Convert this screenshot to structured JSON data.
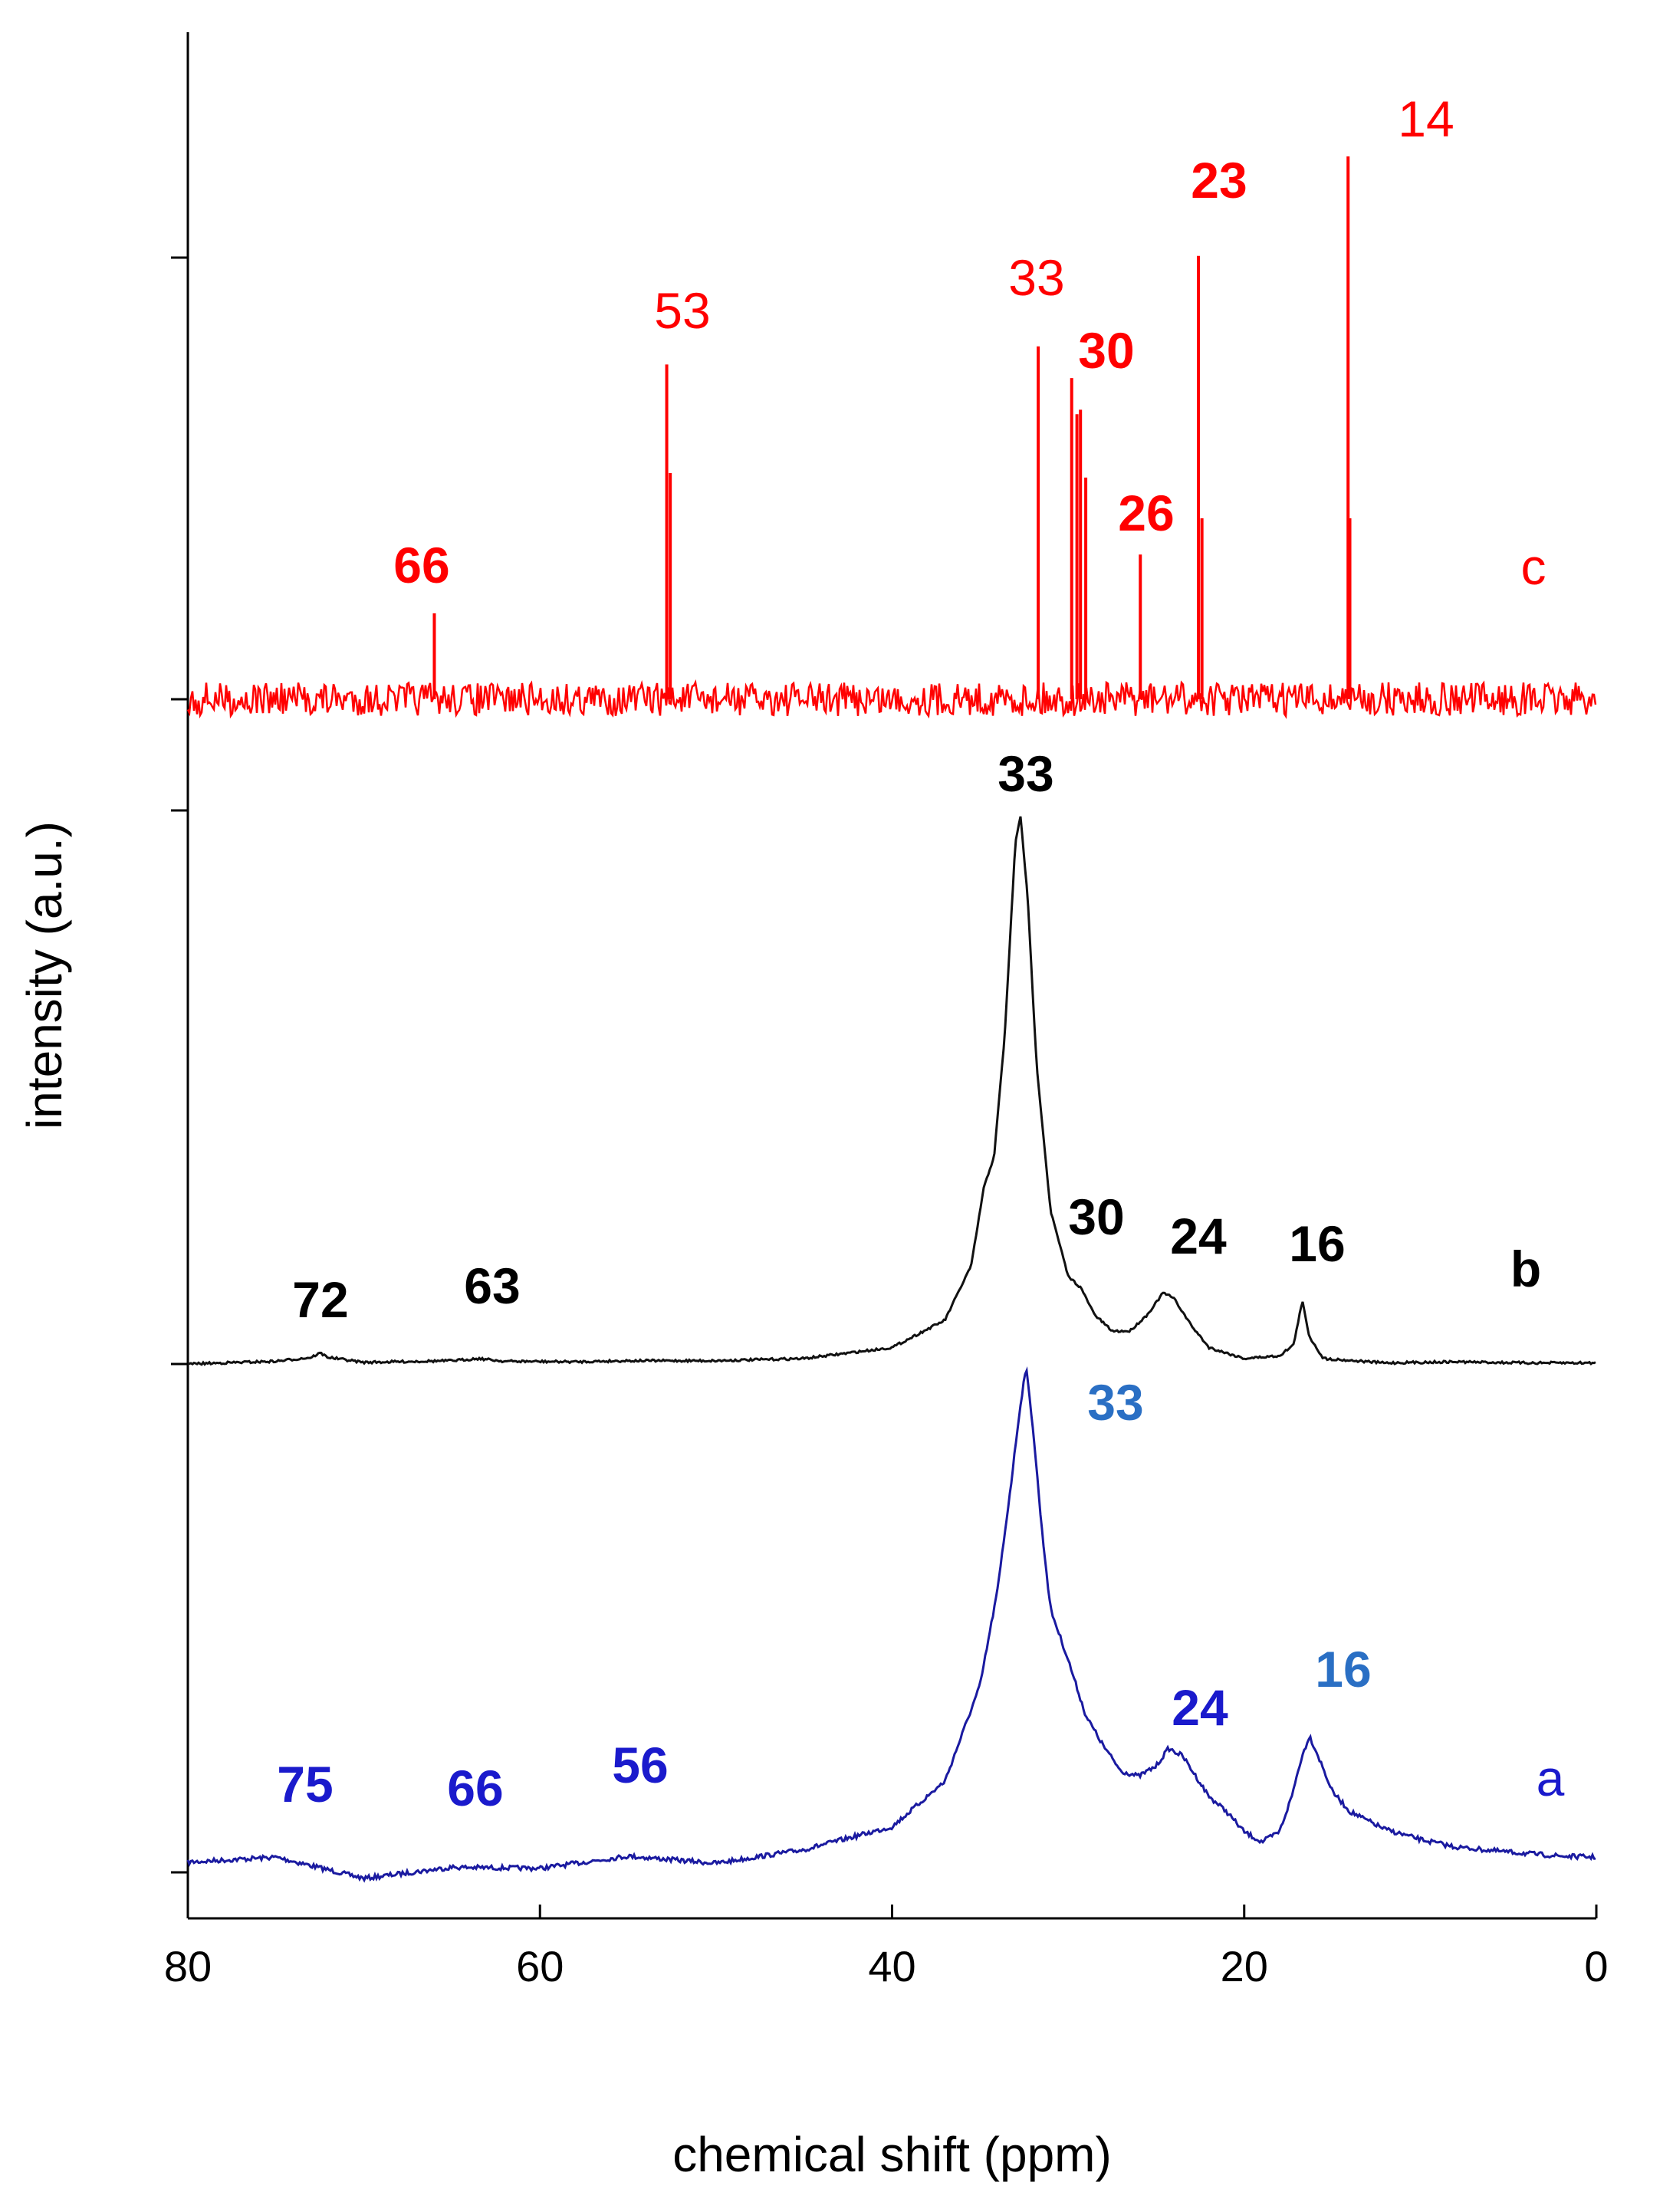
{
  "chart_data": {
    "type": "line",
    "title": "",
    "xlabel": "chemical shift (ppm)",
    "ylabel": "intensity (a.u.)",
    "xlim": [
      80,
      0
    ],
    "x_reversed": true,
    "xticks": [
      "80",
      "60",
      "40",
      "20",
      "0"
    ],
    "grid": false,
    "series": [
      {
        "name": "a",
        "color": "#1a1aa0",
        "label_color": "#1a1acc",
        "style": "broad",
        "baseline": [
          [
            80,
            0.02
          ],
          [
            75,
            0.03
          ],
          [
            70,
            -0.012
          ],
          [
            65,
            0.01
          ],
          [
            60,
            0.008
          ],
          [
            55,
            0.032
          ],
          [
            50,
            0.018
          ],
          [
            45,
            0.045
          ],
          [
            40,
            0.09
          ],
          [
            37,
            0.18
          ],
          [
            35,
            0.37
          ],
          [
            34,
            0.56
          ],
          [
            33.2,
            0.78
          ],
          [
            32.8,
            0.9
          ],
          [
            32.4,
            1.0
          ],
          [
            32.0,
            0.88
          ],
          [
            31.5,
            0.68
          ],
          [
            31,
            0.52
          ],
          [
            30,
            0.42
          ],
          [
            29,
            0.31
          ],
          [
            28,
            0.25
          ],
          [
            27,
            0.2
          ],
          [
            26,
            0.19
          ],
          [
            25,
            0.21
          ],
          [
            24.3,
            0.245
          ],
          [
            23.5,
            0.23
          ],
          [
            22,
            0.15
          ],
          [
            21,
            0.12
          ],
          [
            20,
            0.08
          ],
          [
            19,
            0.06
          ],
          [
            18,
            0.08
          ],
          [
            17.3,
            0.15
          ],
          [
            16.8,
            0.22
          ],
          [
            16.3,
            0.27
          ],
          [
            15.8,
            0.23
          ],
          [
            15,
            0.16
          ],
          [
            14,
            0.12
          ],
          [
            12,
            0.085
          ],
          [
            10,
            0.065
          ],
          [
            8,
            0.05
          ],
          [
            5,
            0.04
          ],
          [
            2,
            0.032
          ],
          [
            0,
            0.03
          ]
        ],
        "peak_labels": [
          {
            "x": 75,
            "text": "75",
            "color": "#1a1acc"
          },
          {
            "x": 66,
            "text": "66",
            "color": "#1a1acc"
          },
          {
            "x": 56,
            "text": "56",
            "color": "#1a1acc"
          },
          {
            "x": 33,
            "text": "33",
            "color": "#2a6fc4"
          },
          {
            "x": 24,
            "text": "24",
            "color": "#1a1acc"
          },
          {
            "x": 16,
            "text": "16",
            "color": "#2a6fc4"
          }
        ]
      },
      {
        "name": "b",
        "color": "#111111",
        "label_color": "#000000",
        "style": "narrow",
        "baseline": [
          [
            80,
            0.0
          ],
          [
            75,
            0.005
          ],
          [
            73,
            0.012
          ],
          [
            72.5,
            0.02
          ],
          [
            72,
            0.012
          ],
          [
            70,
            0.003
          ],
          [
            65,
            0.006
          ],
          [
            63.5,
            0.01
          ],
          [
            62,
            0.005
          ],
          [
            58,
            0.004
          ],
          [
            55,
            0.006
          ],
          [
            50,
            0.006
          ],
          [
            45,
            0.01
          ],
          [
            40,
            0.03
          ],
          [
            37,
            0.08
          ],
          [
            35.5,
            0.18
          ],
          [
            34.8,
            0.32
          ],
          [
            34.2,
            0.38
          ],
          [
            33.6,
            0.6
          ],
          [
            33.0,
            0.95
          ],
          [
            32.7,
            1.0
          ],
          [
            32.3,
            0.85
          ],
          [
            31.8,
            0.55
          ],
          [
            31,
            0.28
          ],
          [
            30,
            0.16
          ],
          [
            29.3,
            0.14
          ],
          [
            28.5,
            0.09
          ],
          [
            27.5,
            0.06
          ],
          [
            26.5,
            0.06
          ],
          [
            25.5,
            0.09
          ],
          [
            24.6,
            0.13
          ],
          [
            24,
            0.12
          ],
          [
            23,
            0.07
          ],
          [
            22,
            0.03
          ],
          [
            20,
            0.01
          ],
          [
            18,
            0.015
          ],
          [
            17.2,
            0.035
          ],
          [
            16.7,
            0.115
          ],
          [
            16.3,
            0.05
          ],
          [
            15.5,
            0.01
          ],
          [
            12,
            0.002
          ],
          [
            8,
            0.004
          ],
          [
            4,
            0.002
          ],
          [
            0,
            0.002
          ]
        ],
        "peak_labels": [
          {
            "x": 72,
            "text": "72",
            "color": "#000000"
          },
          {
            "x": 63,
            "text": "63",
            "color": "#000000"
          },
          {
            "x": 33,
            "text": "33",
            "color": "#000000"
          },
          {
            "x": 30,
            "text": "30",
            "color": "#000000"
          },
          {
            "x": 24,
            "text": "24",
            "color": "#000000"
          },
          {
            "x": 16,
            "text": "16",
            "color": "#000000"
          }
        ]
      },
      {
        "name": "c",
        "color": "#ff0000",
        "label_color": "#ff0000",
        "style": "sticks",
        "sticks": [
          {
            "x": 66.0,
            "h": 0.19
          },
          {
            "x": 52.8,
            "h": 0.74
          },
          {
            "x": 52.6,
            "h": 0.5
          },
          {
            "x": 31.7,
            "h": 0.78
          },
          {
            "x": 29.8,
            "h": 0.71
          },
          {
            "x": 29.5,
            "h": 0.63
          },
          {
            "x": 29.3,
            "h": 0.64
          },
          {
            "x": 29.0,
            "h": 0.49
          },
          {
            "x": 25.9,
            "h": 0.32
          },
          {
            "x": 22.6,
            "h": 0.98
          },
          {
            "x": 22.4,
            "h": 0.4
          },
          {
            "x": 14.1,
            "h": 1.2
          },
          {
            "x": 14.0,
            "h": 0.4
          }
        ],
        "peak_labels": [
          {
            "x": 66,
            "text": "66",
            "color": "#ff0000",
            "bold": true
          },
          {
            "x": 53,
            "text": "53",
            "color": "#ff0000",
            "bold": false
          },
          {
            "x": 33,
            "text": "33",
            "color": "#ff0000",
            "bold": false
          },
          {
            "x": 30,
            "text": "30",
            "color": "#ff0000",
            "bold": true
          },
          {
            "x": 26,
            "text": "26",
            "color": "#ff0000",
            "bold": true
          },
          {
            "x": 23,
            "text": "23",
            "color": "#ff0000",
            "bold": true
          },
          {
            "x": 14,
            "text": "14",
            "color": "#ff0000",
            "bold": false
          }
        ]
      }
    ]
  }
}
